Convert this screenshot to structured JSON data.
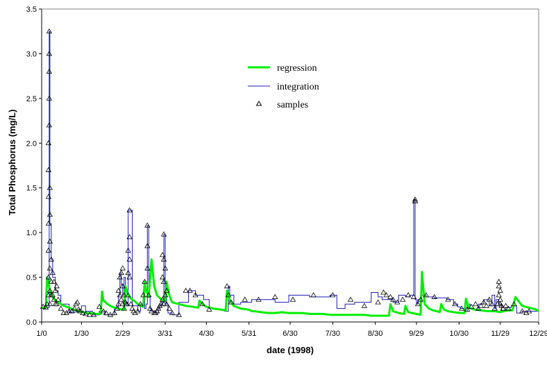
{
  "colors": {
    "regression": "#00ee00",
    "integration": "#1c1cb4",
    "samples": "#000000",
    "axis": "#000000"
  },
  "chart_data": {
    "type": "line",
    "title": "",
    "xlabel": "date (1998)",
    "ylabel": "Total Phosphorus (mg/L)",
    "ylim": [
      0,
      3.5
    ],
    "xlim": [
      0,
      362
    ],
    "grid": false,
    "legend_position": "upper-middle",
    "x_tick_values": [
      0,
      29,
      59,
      90,
      120,
      151,
      181,
      212,
      243,
      273,
      304,
      334,
      362
    ],
    "x_tick_labels": [
      "1/0",
      "1/30",
      "2/29",
      "3/31",
      "4/30",
      "5/31",
      "6/30",
      "7/30",
      "8/30",
      "9/29",
      "10/30",
      "11/29",
      "12/29"
    ],
    "y_ticks": [
      "0.0",
      "0.5",
      "1.0",
      "1.5",
      "2.0",
      "2.5",
      "3.0",
      "3.5"
    ],
    "y_tick_values": [
      0,
      0.5,
      1.0,
      1.5,
      2.0,
      2.5,
      3.0,
      3.5
    ],
    "series": [
      {
        "name": "regression",
        "style": "line",
        "x": [
          0,
          3,
          4,
          6,
          8,
          10,
          12,
          15,
          18,
          20,
          23,
          25,
          27,
          30,
          33,
          36,
          40,
          43,
          44,
          45,
          48,
          50,
          53,
          56,
          58,
          60,
          61,
          63,
          65,
          68,
          70,
          72,
          74,
          75,
          76,
          78,
          80,
          82,
          84,
          86,
          88,
          90,
          91,
          93,
          95,
          100,
          105,
          110,
          114,
          115,
          117,
          120,
          125,
          130,
          134,
          135,
          137,
          140,
          145,
          150,
          152,
          153,
          155,
          160,
          165,
          170,
          175,
          180,
          185,
          190,
          195,
          200,
          205,
          210,
          215,
          220,
          225,
          230,
          235,
          240,
          245,
          250,
          253,
          254,
          256,
          260,
          264,
          265,
          267,
          270,
          273,
          276,
          277,
          279,
          282,
          285,
          288,
          290,
          291,
          293,
          296,
          300,
          305,
          308,
          309,
          311,
          315,
          320,
          325,
          330,
          334,
          336,
          340,
          343,
          345,
          350,
          355,
          360,
          362
        ],
        "y": [
          0.16,
          0.16,
          0.5,
          0.35,
          0.28,
          0.24,
          0.22,
          0.19,
          0.17,
          0.16,
          0.14,
          0.13,
          0.12,
          0.11,
          0.1,
          0.1,
          0.09,
          0.09,
          0.34,
          0.24,
          0.2,
          0.18,
          0.16,
          0.15,
          0.14,
          0.14,
          0.4,
          0.3,
          0.26,
          0.23,
          0.2,
          0.18,
          0.17,
          0.45,
          0.36,
          0.28,
          0.7,
          0.4,
          0.3,
          0.27,
          0.24,
          0.23,
          0.45,
          0.3,
          0.22,
          0.2,
          0.18,
          0.17,
          0.16,
          0.24,
          0.2,
          0.17,
          0.15,
          0.14,
          0.13,
          0.35,
          0.24,
          0.18,
          0.15,
          0.14,
          0.13,
          0.12,
          0.12,
          0.11,
          0.1,
          0.1,
          0.11,
          0.1,
          0.1,
          0.1,
          0.09,
          0.09,
          0.09,
          0.08,
          0.08,
          0.08,
          0.08,
          0.08,
          0.08,
          0.07,
          0.07,
          0.07,
          0.07,
          0.2,
          0.12,
          0.1,
          0.09,
          0.18,
          0.11,
          0.1,
          0.09,
          0.08,
          0.56,
          0.2,
          0.15,
          0.13,
          0.12,
          0.11,
          0.2,
          0.14,
          0.12,
          0.11,
          0.1,
          0.1,
          0.26,
          0.16,
          0.14,
          0.13,
          0.12,
          0.12,
          0.11,
          0.12,
          0.13,
          0.13,
          0.28,
          0.18,
          0.16,
          0.14,
          0.12
        ]
      },
      {
        "name": "integration",
        "style": "step",
        "x": [
          0,
          5,
          5.5,
          6,
          7,
          8,
          10,
          12,
          14,
          20,
          25,
          27,
          29,
          32,
          37,
          42,
          46,
          50,
          53,
          56,
          57,
          58,
          59,
          60,
          61,
          62,
          63,
          66,
          70,
          72,
          74,
          75,
          76,
          77,
          78,
          79,
          80,
          83,
          85,
          86,
          87,
          88,
          89,
          90,
          91,
          92,
          95,
          100,
          107,
          112,
          118,
          122,
          127,
          133,
          136,
          137,
          140,
          145,
          153,
          160,
          170,
          180,
          195,
          210,
          215,
          221,
          228,
          240,
          245,
          248,
          252,
          256,
          260,
          265,
          268,
          271,
          272,
          273,
          274,
          276,
          280,
          286,
          295,
          300,
          303,
          305,
          308,
          310,
          312,
          315,
          318,
          322,
          326,
          328,
          330,
          331,
          333,
          335,
          338,
          342,
          346,
          350,
          354,
          362
        ],
        "y": [
          0.16,
          0.16,
          3.25,
          1.1,
          0.7,
          0.5,
          0.35,
          0.3,
          0.2,
          0.11,
          0.11,
          0.14,
          0.18,
          0.12,
          0.08,
          0.12,
          0.08,
          0.08,
          0.15,
          0.3,
          0.55,
          0.42,
          0.3,
          0.5,
          0.22,
          0.18,
          1.25,
          0.18,
          0.12,
          0.2,
          0.35,
          0.15,
          0.2,
          1.08,
          0.3,
          0.15,
          0.12,
          0.1,
          0.15,
          0.18,
          0.2,
          0.25,
          0.98,
          0.35,
          0.2,
          0.1,
          0.08,
          0.22,
          0.35,
          0.3,
          0.25,
          0.15,
          0.14,
          0.12,
          0.4,
          0.3,
          0.2,
          0.22,
          0.25,
          0.25,
          0.22,
          0.3,
          0.28,
          0.3,
          0.15,
          0.2,
          0.22,
          0.33,
          0.28,
          0.25,
          0.25,
          0.22,
          0.3,
          0.28,
          0.3,
          1.37,
          0.25,
          0.2,
          0.25,
          0.3,
          0.28,
          0.27,
          0.25,
          0.2,
          0.17,
          0.15,
          0.12,
          0.2,
          0.15,
          0.14,
          0.2,
          0.25,
          0.18,
          0.3,
          0.15,
          0.25,
          0.2,
          0.12,
          0.16,
          0.18,
          0.1,
          0.12,
          0.12,
          0.12
        ]
      },
      {
        "name": "samples",
        "style": "marker",
        "marker": "triangle-open",
        "x": [
          1,
          3,
          4,
          5,
          5,
          5,
          5,
          5,
          5,
          5,
          5.5,
          5.5,
          5.5,
          5.5,
          5.5,
          6,
          6,
          6,
          6,
          6,
          6,
          7,
          7,
          7,
          8,
          8,
          9,
          9,
          10,
          10,
          11,
          11,
          12,
          14,
          16,
          18,
          20,
          22,
          24,
          25,
          26,
          27,
          28,
          30,
          32,
          35,
          38,
          42,
          45,
          47,
          50,
          53,
          55,
          56,
          56,
          57,
          57,
          58,
          58,
          59,
          59,
          59,
          60,
          60,
          61,
          62,
          63,
          63,
          63,
          64,
          64,
          64,
          64,
          65,
          66,
          67,
          68,
          70,
          72,
          74,
          75,
          77,
          77,
          77,
          78,
          79,
          80,
          82,
          83,
          84,
          85,
          86,
          87,
          88,
          88,
          88,
          89,
          89,
          89,
          89,
          90,
          90,
          91,
          91,
          93,
          95,
          100,
          105,
          108,
          112,
          117,
          122,
          135,
          136,
          138,
          148,
          158,
          170,
          183,
          198,
          212,
          225,
          235,
          245,
          249,
          251,
          254,
          256,
          259,
          263,
          267,
          271,
          272,
          272,
          274,
          276,
          280,
          286,
          296,
          301,
          306,
          310,
          313,
          316,
          318,
          320,
          322,
          324,
          326,
          328,
          330,
          332,
          333,
          333,
          333,
          334,
          334,
          334,
          335,
          336,
          338,
          340,
          344,
          350,
          353,
          355
        ],
        "y": [
          0.17,
          0.16,
          0.2,
          0.3,
          0.5,
          0.8,
          1.1,
          1.4,
          1.7,
          2.0,
          2.2,
          2.5,
          2.8,
          3.0,
          3.25,
          0.2,
          0.35,
          0.6,
          0.9,
          1.2,
          1.5,
          0.3,
          0.45,
          0.7,
          0.3,
          0.55,
          0.25,
          0.45,
          0.2,
          0.35,
          0.4,
          0.2,
          0.25,
          0.15,
          0.1,
          0.1,
          0.12,
          0.12,
          0.15,
          0.2,
          0.22,
          0.14,
          0.12,
          0.1,
          0.09,
          0.08,
          0.08,
          0.17,
          0.12,
          0.1,
          0.08,
          0.1,
          0.15,
          0.2,
          0.35,
          0.3,
          0.5,
          0.25,
          0.55,
          0.2,
          0.4,
          0.6,
          0.15,
          0.3,
          0.22,
          0.2,
          0.3,
          0.55,
          0.8,
          0.5,
          0.7,
          0.95,
          1.25,
          0.2,
          0.15,
          0.12,
          0.1,
          0.12,
          0.2,
          0.3,
          0.45,
          0.6,
          0.85,
          1.08,
          0.3,
          0.15,
          0.12,
          0.1,
          0.1,
          0.12,
          0.15,
          0.18,
          0.2,
          0.25,
          0.5,
          0.75,
          0.2,
          0.45,
          0.7,
          0.98,
          0.3,
          0.6,
          0.2,
          0.35,
          0.15,
          0.1,
          0.08,
          0.35,
          0.35,
          0.3,
          0.2,
          0.14,
          0.4,
          0.3,
          0.22,
          0.25,
          0.25,
          0.28,
          0.25,
          0.3,
          0.3,
          0.25,
          0.18,
          0.22,
          0.33,
          0.3,
          0.28,
          0.25,
          0.22,
          0.25,
          0.3,
          0.28,
          1.35,
          1.37,
          0.2,
          0.25,
          0.3,
          0.28,
          0.25,
          0.2,
          0.15,
          0.14,
          0.17,
          0.2,
          0.15,
          0.18,
          0.22,
          0.18,
          0.25,
          0.2,
          0.15,
          0.2,
          0.3,
          0.4,
          0.45,
          0.2,
          0.35,
          0.25,
          0.18,
          0.15,
          0.18,
          0.15,
          0.2,
          0.12,
          0.1,
          0.12
        ]
      }
    ]
  }
}
